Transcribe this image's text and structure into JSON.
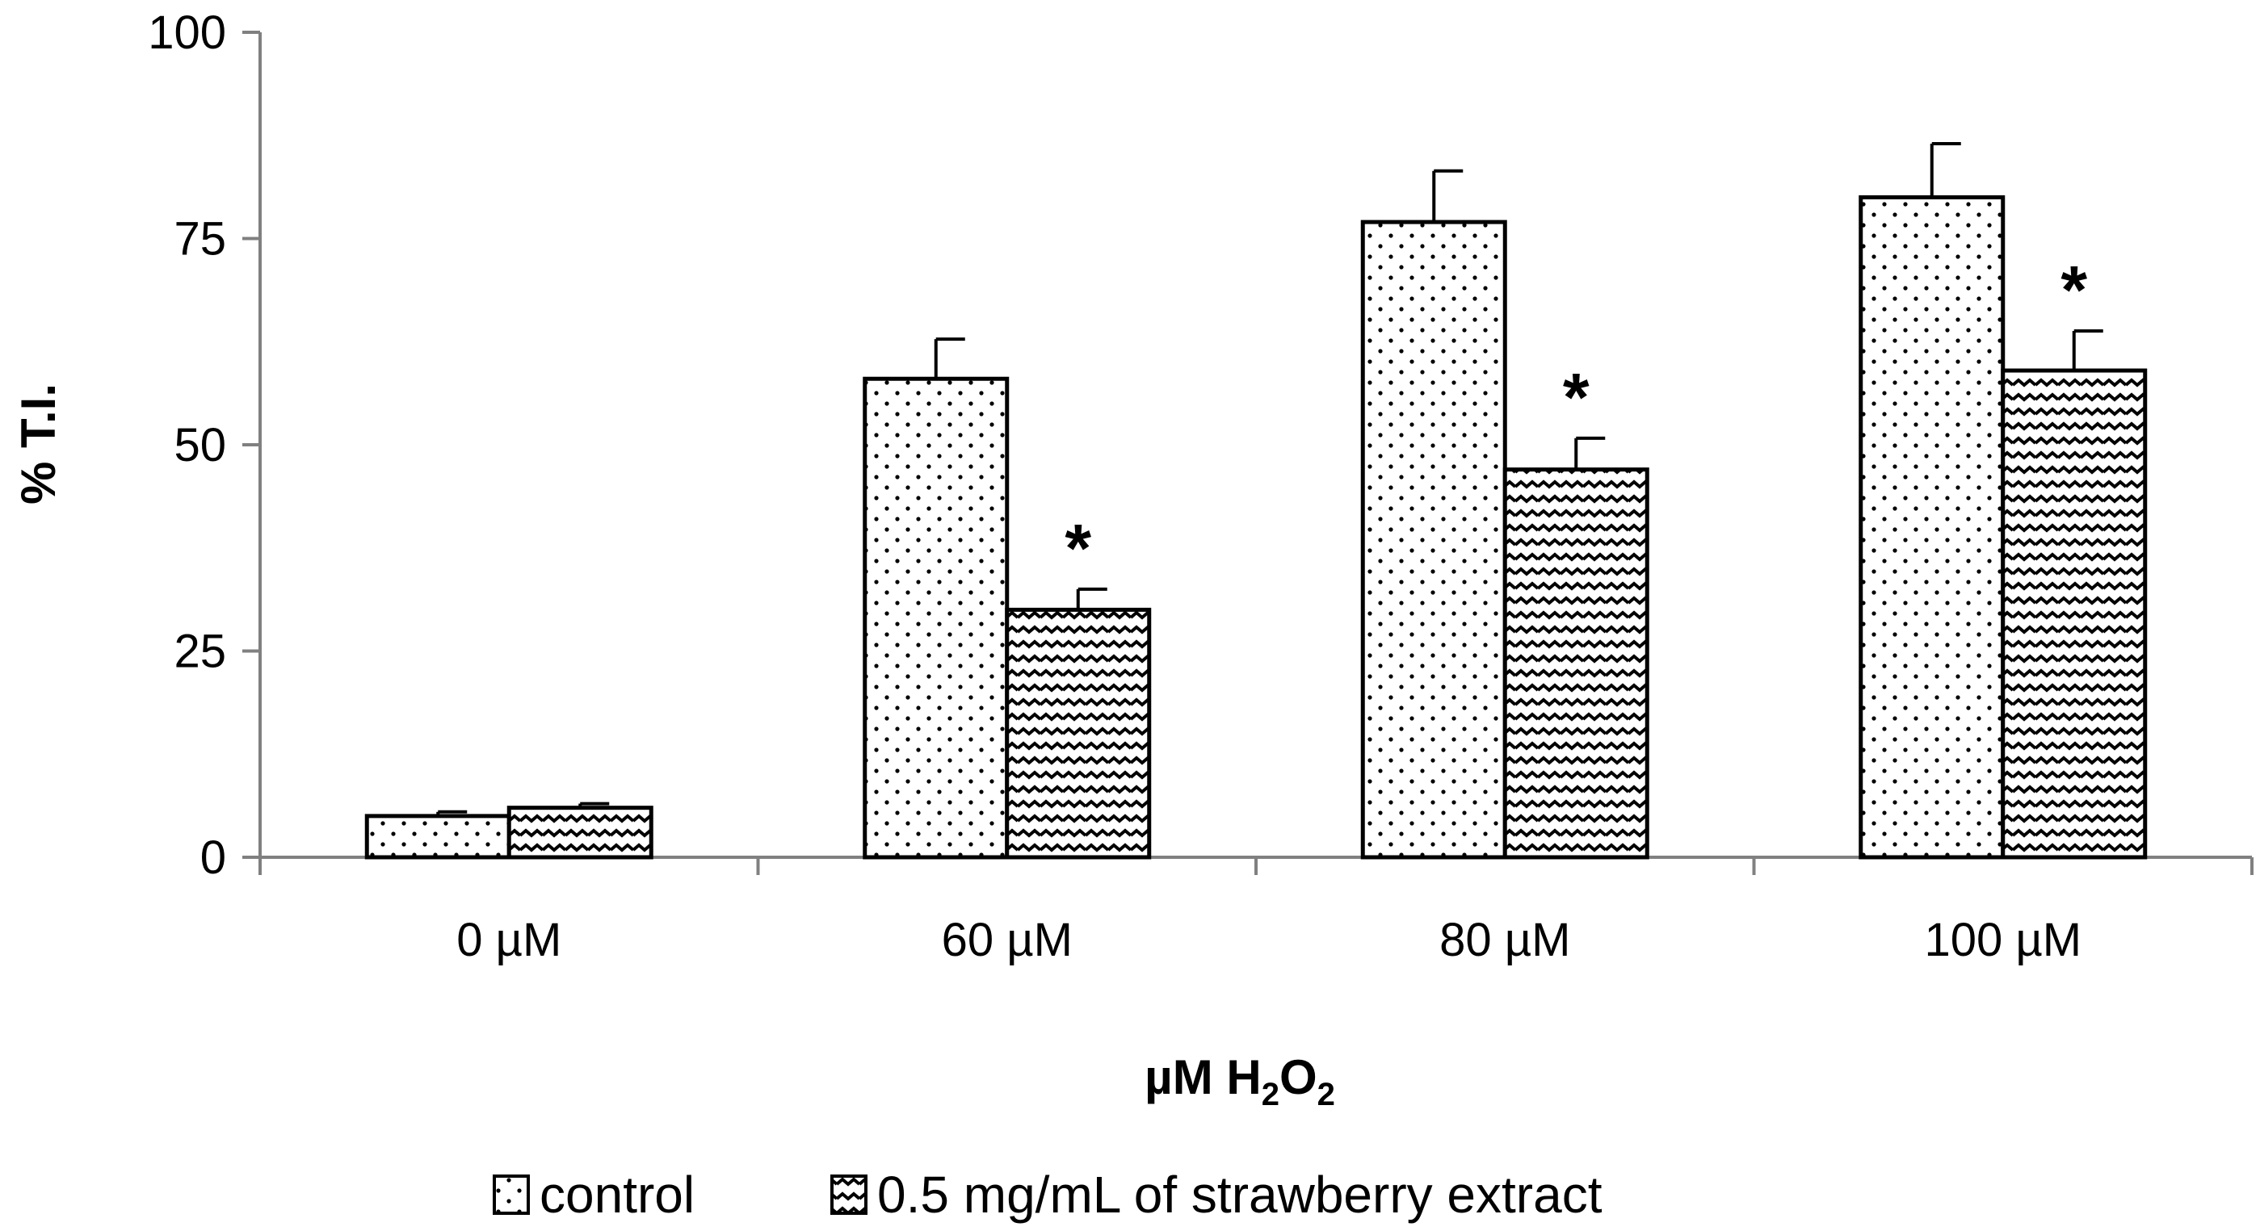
{
  "chart_data": {
    "type": "bar",
    "title": "",
    "categories": [
      "0 µM",
      "60 µM",
      "80 µM",
      "100 µM"
    ],
    "xlabel": {
      "base": "µM H",
      "sub1": "2",
      "mid": "O",
      "sub2": "2"
    },
    "ylabel": "% T.I.",
    "ylim": [
      0,
      100
    ],
    "yticks": [
      0,
      25,
      50,
      75,
      100
    ],
    "grid": false,
    "legend_position": "bottom-center",
    "significance_marker": "*",
    "series": [
      {
        "name": "control",
        "pattern": "dots",
        "values": [
          5,
          58,
          77,
          80
        ],
        "errors": [
          0.5,
          4.8,
          6.2,
          6.5
        ],
        "significant": [
          false,
          false,
          false,
          false
        ]
      },
      {
        "name": "0.5 mg/mL of strawberry extract",
        "pattern": "waves",
        "values": [
          6,
          30,
          47,
          59
        ],
        "errors": [
          0.5,
          2.5,
          3.8,
          4.8
        ],
        "significant": [
          false,
          true,
          true,
          true
        ]
      }
    ],
    "colors": {
      "fill": "#ffffff",
      "stroke": "#000000",
      "axis": "#808080"
    }
  }
}
